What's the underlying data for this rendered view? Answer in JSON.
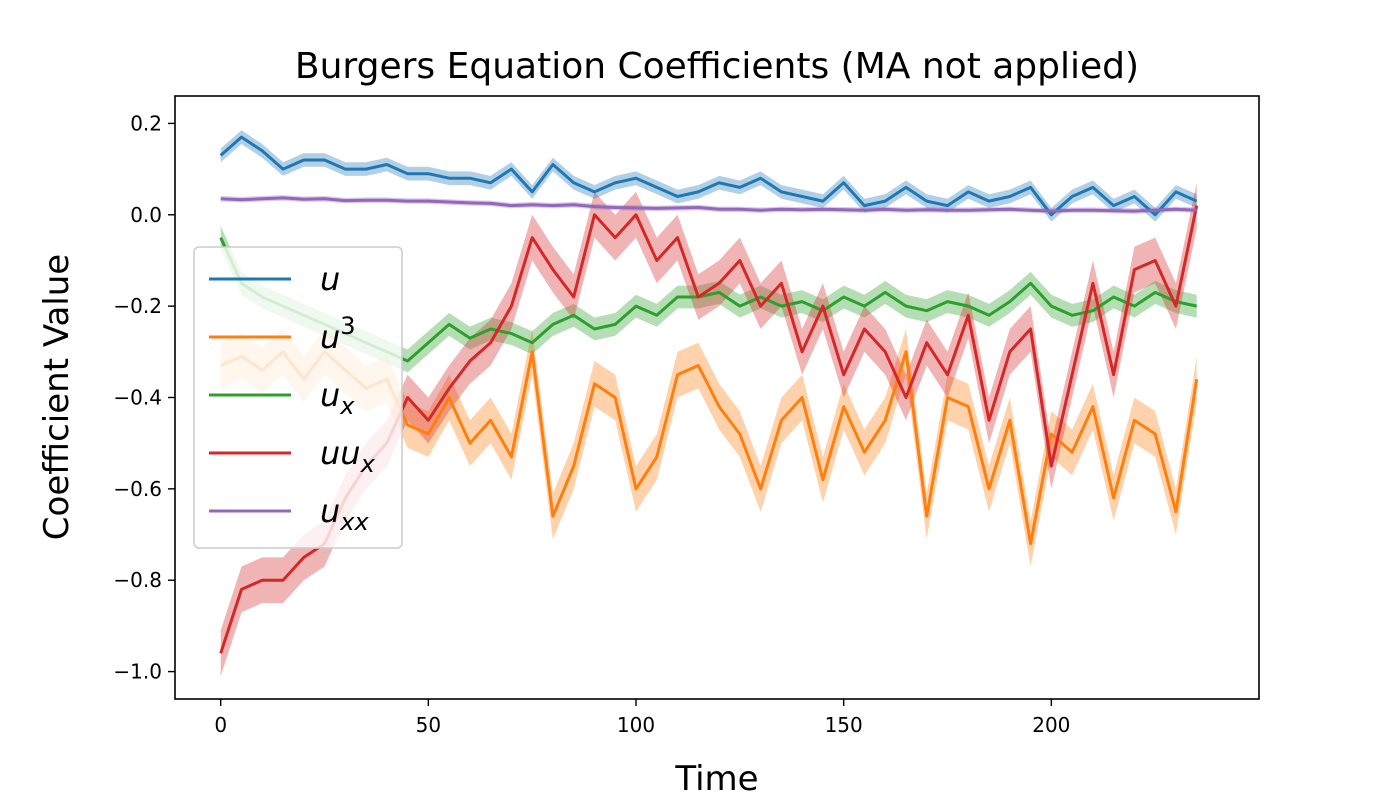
{
  "chart_data": {
    "type": "line",
    "title": "Burgers Equation Coefficients (MA not applied)",
    "xlabel": "Time",
    "ylabel": "Coefficient Value",
    "xlim": [
      -11,
      250
    ],
    "ylim": [
      -1.06,
      0.26
    ],
    "x_ticks": [
      0,
      50,
      100,
      150,
      200
    ],
    "y_ticks": [
      0.2,
      0.0,
      -0.2,
      -0.4,
      -0.6,
      -0.8,
      -1.0
    ],
    "x_tick_labels": [
      "0",
      "50",
      "100",
      "150",
      "200"
    ],
    "y_tick_labels": [
      "0.2",
      "0.0",
      "−0.2",
      "−0.4",
      "−0.6",
      "−0.8",
      "−1.0"
    ],
    "grid": false,
    "legend_position": "center-left",
    "shaded_band": "uncertainty band around each series",
    "series": [
      {
        "name": "u",
        "legend_base": "u",
        "legend_sup": "",
        "legend_sub": "",
        "color": "#1f77b4",
        "band_halfwidth": 0.015,
        "x": [
          0,
          5,
          10,
          15,
          20,
          25,
          30,
          35,
          40,
          45,
          50,
          55,
          60,
          65,
          70,
          75,
          80,
          85,
          90,
          95,
          100,
          105,
          110,
          115,
          120,
          125,
          130,
          135,
          140,
          145,
          150,
          155,
          160,
          165,
          170,
          175,
          180,
          185,
          190,
          195,
          200,
          205,
          210,
          215,
          220,
          225,
          230,
          235
        ],
        "values": [
          0.13,
          0.17,
          0.14,
          0.1,
          0.12,
          0.12,
          0.1,
          0.1,
          0.11,
          0.09,
          0.09,
          0.08,
          0.08,
          0.07,
          0.1,
          0.05,
          0.11,
          0.07,
          0.05,
          0.07,
          0.08,
          0.06,
          0.04,
          0.05,
          0.07,
          0.06,
          0.08,
          0.05,
          0.04,
          0.03,
          0.07,
          0.02,
          0.03,
          0.06,
          0.03,
          0.02,
          0.05,
          0.03,
          0.04,
          0.06,
          0.0,
          0.04,
          0.06,
          0.02,
          0.04,
          0.0,
          0.05,
          0.03
        ]
      },
      {
        "name": "u^3",
        "legend_base": "u",
        "legend_sup": "3",
        "legend_sub": "",
        "color": "#ff7f0e",
        "band_halfwidth": 0.05,
        "x": [
          0,
          5,
          10,
          15,
          20,
          25,
          30,
          35,
          40,
          45,
          50,
          55,
          60,
          65,
          70,
          75,
          80,
          85,
          90,
          95,
          100,
          105,
          110,
          115,
          120,
          125,
          130,
          135,
          140,
          145,
          150,
          155,
          160,
          165,
          170,
          175,
          180,
          185,
          190,
          195,
          200,
          205,
          210,
          215,
          220,
          225,
          230,
          235
        ],
        "values": [
          -0.33,
          -0.31,
          -0.34,
          -0.3,
          -0.36,
          -0.3,
          -0.34,
          -0.38,
          -0.36,
          -0.46,
          -0.48,
          -0.4,
          -0.5,
          -0.45,
          -0.53,
          -0.3,
          -0.66,
          -0.55,
          -0.37,
          -0.4,
          -0.6,
          -0.53,
          -0.35,
          -0.33,
          -0.42,
          -0.48,
          -0.6,
          -0.45,
          -0.4,
          -0.58,
          -0.42,
          -0.52,
          -0.45,
          -0.3,
          -0.66,
          -0.4,
          -0.42,
          -0.6,
          -0.45,
          -0.72,
          -0.48,
          -0.52,
          -0.42,
          -0.62,
          -0.45,
          -0.48,
          -0.65,
          -0.36
        ]
      },
      {
        "name": "u_x",
        "legend_base": "u",
        "legend_sup": "",
        "legend_sub": "x",
        "color": "#2ca02c",
        "band_halfwidth": 0.025,
        "x": [
          0,
          5,
          10,
          15,
          20,
          25,
          30,
          35,
          40,
          45,
          50,
          55,
          60,
          65,
          70,
          75,
          80,
          85,
          90,
          95,
          100,
          105,
          110,
          115,
          120,
          125,
          130,
          135,
          140,
          145,
          150,
          155,
          160,
          165,
          170,
          175,
          180,
          185,
          190,
          195,
          200,
          205,
          210,
          215,
          220,
          225,
          230,
          235
        ],
        "values": [
          -0.05,
          -0.15,
          -0.18,
          -0.2,
          -0.22,
          -0.24,
          -0.26,
          -0.28,
          -0.3,
          -0.32,
          -0.28,
          -0.24,
          -0.27,
          -0.25,
          -0.26,
          -0.28,
          -0.24,
          -0.22,
          -0.25,
          -0.24,
          -0.2,
          -0.22,
          -0.18,
          -0.18,
          -0.17,
          -0.2,
          -0.18,
          -0.2,
          -0.19,
          -0.21,
          -0.18,
          -0.2,
          -0.17,
          -0.2,
          -0.21,
          -0.19,
          -0.2,
          -0.22,
          -0.19,
          -0.15,
          -0.2,
          -0.22,
          -0.21,
          -0.18,
          -0.2,
          -0.17,
          -0.19,
          -0.2
        ]
      },
      {
        "name": "u u_x",
        "legend_base": "uu",
        "legend_sup": "",
        "legend_sub": "x",
        "color": "#d62728",
        "band_halfwidth": 0.05,
        "x": [
          0,
          5,
          10,
          15,
          20,
          25,
          30,
          35,
          40,
          45,
          50,
          55,
          60,
          65,
          70,
          75,
          80,
          85,
          90,
          95,
          100,
          105,
          110,
          115,
          120,
          125,
          130,
          135,
          140,
          145,
          150,
          155,
          160,
          165,
          170,
          175,
          180,
          185,
          190,
          195,
          200,
          205,
          210,
          215,
          220,
          225,
          230,
          235
        ],
        "values": [
          -0.96,
          -0.82,
          -0.8,
          -0.8,
          -0.75,
          -0.72,
          -0.62,
          -0.55,
          -0.5,
          -0.4,
          -0.45,
          -0.38,
          -0.32,
          -0.28,
          -0.2,
          -0.05,
          -0.12,
          -0.18,
          0.0,
          -0.05,
          0.0,
          -0.1,
          -0.05,
          -0.18,
          -0.15,
          -0.1,
          -0.2,
          -0.15,
          -0.3,
          -0.2,
          -0.35,
          -0.25,
          -0.3,
          -0.4,
          -0.28,
          -0.35,
          -0.22,
          -0.45,
          -0.3,
          -0.25,
          -0.55,
          -0.35,
          -0.15,
          -0.35,
          -0.12,
          -0.1,
          -0.2,
          0.02
        ]
      },
      {
        "name": "u_xx",
        "legend_base": "u",
        "legend_sup": "",
        "legend_sub": "xx",
        "color": "#9467bd",
        "band_halfwidth": 0.006,
        "x": [
          0,
          5,
          10,
          15,
          20,
          25,
          30,
          35,
          40,
          45,
          50,
          55,
          60,
          65,
          70,
          75,
          80,
          85,
          90,
          95,
          100,
          105,
          110,
          115,
          120,
          125,
          130,
          135,
          140,
          145,
          150,
          155,
          160,
          165,
          170,
          175,
          180,
          185,
          190,
          195,
          200,
          205,
          210,
          215,
          220,
          225,
          230,
          235
        ],
        "values": [
          0.035,
          0.033,
          0.035,
          0.037,
          0.034,
          0.035,
          0.031,
          0.032,
          0.032,
          0.03,
          0.03,
          0.028,
          0.026,
          0.025,
          0.02,
          0.022,
          0.02,
          0.022,
          0.018,
          0.016,
          0.015,
          0.014,
          0.015,
          0.016,
          0.012,
          0.012,
          0.01,
          0.012,
          0.011,
          0.012,
          0.011,
          0.01,
          0.012,
          0.01,
          0.011,
          0.01,
          0.01,
          0.011,
          0.012,
          0.01,
          0.008,
          0.01,
          0.01,
          0.009,
          0.008,
          0.01,
          0.012,
          0.01
        ]
      }
    ]
  }
}
